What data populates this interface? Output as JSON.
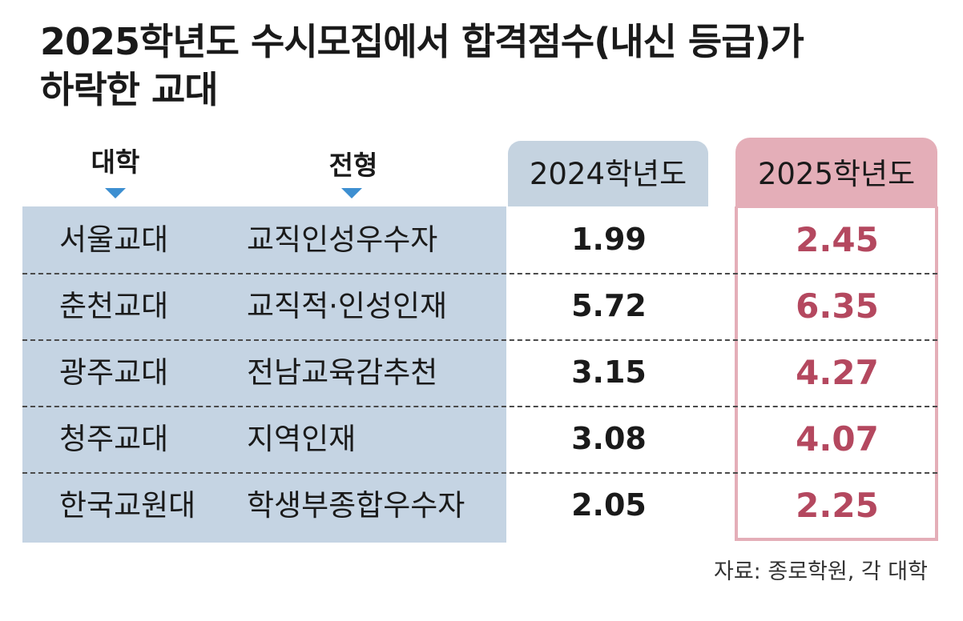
{
  "chart_data": {
    "type": "table",
    "title_lines": [
      "2025학년도 수시모집에서 합격점수(내신 등급)가",
      "하락한 교대"
    ],
    "columns": [
      "대학",
      "전형",
      "2024학년도",
      "2025학년도"
    ],
    "rows": [
      {
        "univ": "서울교대",
        "type": "교직인성우수자",
        "y2024": "1.99",
        "y2025": "2.45"
      },
      {
        "univ": "춘천교대",
        "type": "교직적·인성인재",
        "y2024": "5.72",
        "y2025": "6.35"
      },
      {
        "univ": "광주교대",
        "type": "전남교육감추천",
        "y2024": "3.15",
        "y2025": "4.27"
      },
      {
        "univ": "청주교대",
        "type": "지역인재",
        "y2024": "3.08",
        "y2025": "4.07"
      },
      {
        "univ": "한국교원대",
        "type": "학생부종합우수자",
        "y2024": "2.05",
        "y2025": "2.25"
      }
    ],
    "source": "자료: 종로학원, 각 대학"
  },
  "colors": {
    "left_panel": "#c5d4e3",
    "header_2024": "#c5d3e0",
    "header_2025": "#e4aeb8",
    "value_2025": "#b4485f",
    "arrow": "#3d8fd1"
  }
}
